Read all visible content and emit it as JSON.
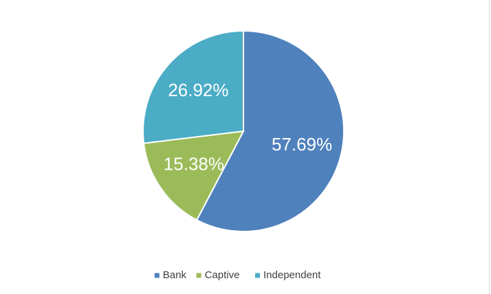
{
  "chart_data": {
    "type": "pie",
    "categories": [
      "Bank",
      "Captive",
      "Independent"
    ],
    "values": [
      57.69,
      15.38,
      26.92
    ],
    "value_labels": [
      "57.69%",
      "15.38%",
      "26.92%"
    ],
    "colors": [
      "#4f81bd",
      "#9bbb59",
      "#4bacc6"
    ],
    "legend": "bottom"
  }
}
